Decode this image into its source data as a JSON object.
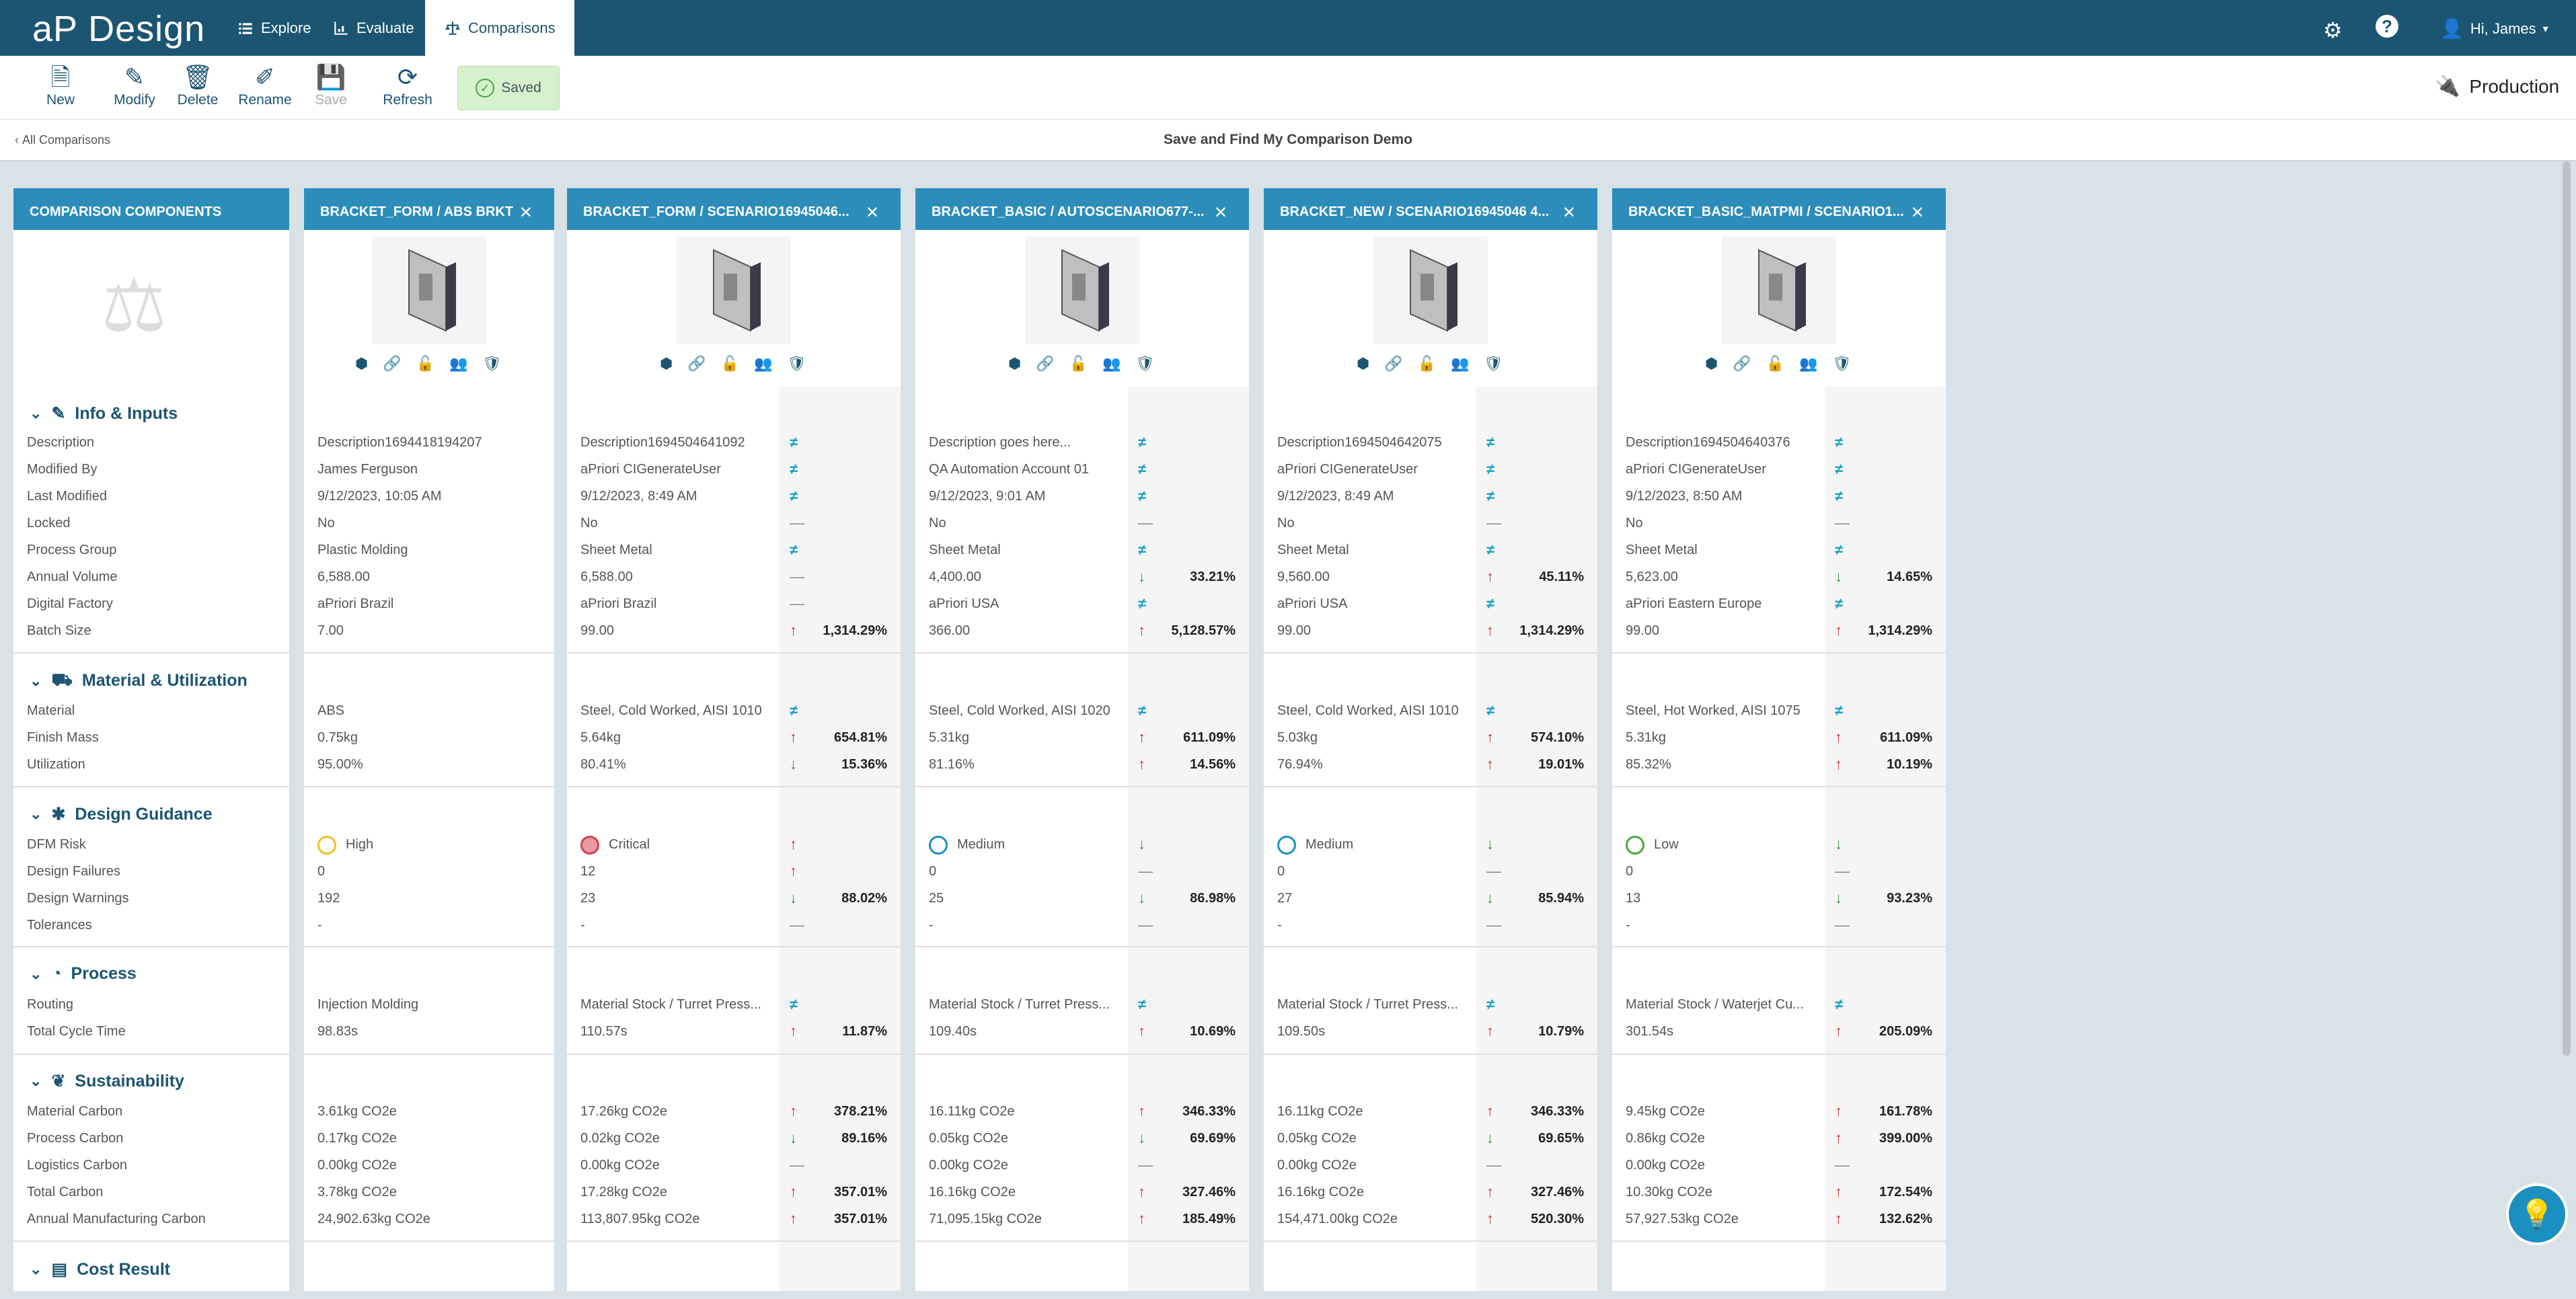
{
  "app": {
    "logo": "aP Design",
    "nav": [
      "Explore",
      "Evaluate",
      "Comparisons"
    ],
    "user": "Hi, James"
  },
  "toolbar": {
    "new": "New",
    "modify": "Modify",
    "delete": "Delete",
    "rename": "Rename",
    "save": "Save",
    "refresh": "Refresh",
    "saved": "Saved",
    "deployment": "Production"
  },
  "subheader": {
    "back": "All Comparisons",
    "title": "Save and Find My Comparison Demo"
  },
  "components_header": "COMPARISON COMPONENTS",
  "sections": [
    {
      "title": "Info & Inputs",
      "rows": [
        "Description",
        "Modified By",
        "Last Modified",
        "Locked",
        "Process Group",
        "Annual Volume",
        "Digital Factory",
        "Batch Size"
      ]
    },
    {
      "title": "Material & Utilization",
      "rows": [
        "Material",
        "Finish Mass",
        "Utilization"
      ]
    },
    {
      "title": "Design Guidance",
      "rows": [
        "DFM Risk",
        "Design Failures",
        "Design Warnings",
        "Tolerances"
      ]
    },
    {
      "title": "Process",
      "rows": [
        "Routing",
        "Total Cycle Time"
      ]
    },
    {
      "title": "Sustainability",
      "rows": [
        "Material Carbon",
        "Process Carbon",
        "Logistics Carbon",
        "Total Carbon",
        "Annual Manufacturing Carbon"
      ]
    },
    {
      "title": "Cost Result",
      "rows": []
    }
  ],
  "columns": [
    {
      "header": "BRACKET_FORM / ABS BRKT",
      "base": true,
      "dfm_color": "#f0c020",
      "values": [
        "Description1694418194207",
        "James Ferguson",
        "9/12/2023, 10:05 AM",
        "No",
        "Plastic Molding",
        "6,588.00",
        "aPriori Brazil",
        "7.00",
        "ABS",
        "0.75kg",
        "95.00%",
        "High",
        "0",
        "192",
        "-",
        "Injection Molding",
        "98.83s",
        "3.61kg CO2e",
        "0.17kg CO2e",
        "0.00kg CO2e",
        "3.78kg CO2e",
        "24,902.63kg CO2e"
      ]
    },
    {
      "header": "BRACKET_FORM / SCENARIO16945046...",
      "dfm_color": "#d04050",
      "values": [
        "Description1694504641092",
        "aPriori CIGenerateUser",
        "9/12/2023, 8:49 AM",
        "No",
        "Sheet Metal",
        "6,588.00",
        "aPriori Brazil",
        "99.00",
        "Steel, Cold Worked, AISI 1010",
        "5.64kg",
        "80.41%",
        "Critical",
        "12",
        "23",
        "-",
        "Material Stock / Turret Press...",
        "110.57s",
        "17.26kg CO2e",
        "0.02kg CO2e",
        "0.00kg CO2e",
        "17.28kg CO2e",
        "113,807.95kg CO2e"
      ],
      "syms": [
        "ne",
        "ne",
        "ne",
        "eq",
        "ne",
        "eq",
        "eq",
        "up",
        "ne",
        "up",
        "dn",
        "up",
        "up",
        "dn",
        "eq",
        "ne",
        "up",
        "up",
        "dn",
        "eq",
        "up",
        "up"
      ],
      "pcts": [
        "",
        "",
        "",
        "",
        "",
        "",
        "",
        "1,314.29%",
        "",
        "654.81%",
        "15.36%",
        "",
        "",
        "88.02%",
        "",
        "",
        "11.87%",
        "378.21%",
        "89.16%",
        "",
        "357.01%",
        "357.01%"
      ]
    },
    {
      "header": "BRACKET_BASIC / AUTOSCENARIO677-...",
      "dfm_color": "#1b90c0",
      "values": [
        "Description goes here...",
        "QA Automation Account 01",
        "9/12/2023, 9:01 AM",
        "No",
        "Sheet Metal",
        "4,400.00",
        "aPriori USA",
        "366.00",
        "Steel, Cold Worked, AISI 1020",
        "5.31kg",
        "81.16%",
        "Medium",
        "0",
        "25",
        "-",
        "Material Stock / Turret Press...",
        "109.40s",
        "16.11kg CO2e",
        "0.05kg CO2e",
        "0.00kg CO2e",
        "16.16kg CO2e",
        "71,095.15kg CO2e"
      ],
      "syms": [
        "ne",
        "ne",
        "ne",
        "eq",
        "ne",
        "dn",
        "ne",
        "up",
        "ne",
        "up",
        "up",
        "dn",
        "eq",
        "dn",
        "eq",
        "ne",
        "up",
        "up",
        "dn",
        "eq",
        "up",
        "up"
      ],
      "pcts": [
        "",
        "",
        "",
        "",
        "",
        "33.21%",
        "",
        "5,128.57%",
        "",
        "611.09%",
        "14.56%",
        "",
        "",
        "86.98%",
        "",
        "",
        "10.69%",
        "346.33%",
        "69.69%",
        "",
        "327.46%",
        "185.49%"
      ]
    },
    {
      "header": "BRACKET_NEW / SCENARIO16945046 4...",
      "dfm_color": "#1b90c0",
      "values": [
        "Description1694504642075",
        "aPriori CIGenerateUser",
        "9/12/2023, 8:49 AM",
        "No",
        "Sheet Metal",
        "9,560.00",
        "aPriori USA",
        "99.00",
        "Steel, Cold Worked, AISI 1010",
        "5.03kg",
        "76.94%",
        "Medium",
        "0",
        "27",
        "-",
        "Material Stock / Turret Press...",
        "109.50s",
        "16.11kg CO2e",
        "0.05kg CO2e",
        "0.00kg CO2e",
        "16.16kg CO2e",
        "154,471.00kg CO2e"
      ],
      "syms": [
        "ne",
        "ne",
        "ne",
        "eq",
        "ne",
        "up",
        "ne",
        "up",
        "ne",
        "up",
        "up",
        "dn",
        "eq",
        "dn",
        "eq",
        "ne",
        "up",
        "up",
        "dn",
        "eq",
        "up",
        "up"
      ],
      "pcts": [
        "",
        "",
        "",
        "",
        "",
        "45.11%",
        "",
        "1,314.29%",
        "",
        "574.10%",
        "19.01%",
        "",
        "",
        "85.94%",
        "",
        "",
        "10.79%",
        "346.33%",
        "69.65%",
        "",
        "327.46%",
        "520.30%"
      ]
    },
    {
      "header": "BRACKET_BASIC_MATPMI / SCENARIO1...",
      "dfm_color": "#48a83c",
      "values": [
        "Description1694504640376",
        "aPriori CIGenerateUser",
        "9/12/2023, 8:50 AM",
        "No",
        "Sheet Metal",
        "5,623.00",
        "aPriori Eastern Europe",
        "99.00",
        "Steel, Hot Worked, AISI 1075",
        "5.31kg",
        "85.32%",
        "Low",
        "0",
        "13",
        "-",
        "Material Stock / Waterjet Cu...",
        "301.54s",
        "9.45kg CO2e",
        "0.86kg CO2e",
        "0.00kg CO2e",
        "10.30kg CO2e",
        "57,927.53kg CO2e"
      ],
      "syms": [
        "ne",
        "ne",
        "ne",
        "eq",
        "ne",
        "dn",
        "ne",
        "up",
        "ne",
        "up",
        "up",
        "dn",
        "eq",
        "dn",
        "eq",
        "ne",
        "up",
        "up",
        "up",
        "eq",
        "up",
        "up"
      ],
      "pcts": [
        "",
        "",
        "",
        "",
        "",
        "14.65%",
        "",
        "1,314.29%",
        "",
        "611.09%",
        "10.19%",
        "",
        "",
        "93.23%",
        "",
        "",
        "205.09%",
        "161.78%",
        "399.00%",
        "",
        "172.54%",
        "132.62%"
      ]
    }
  ],
  "symbols": {
    "ne": "≠",
    "up": "↑",
    "dn": "↓",
    "eq": "—"
  }
}
